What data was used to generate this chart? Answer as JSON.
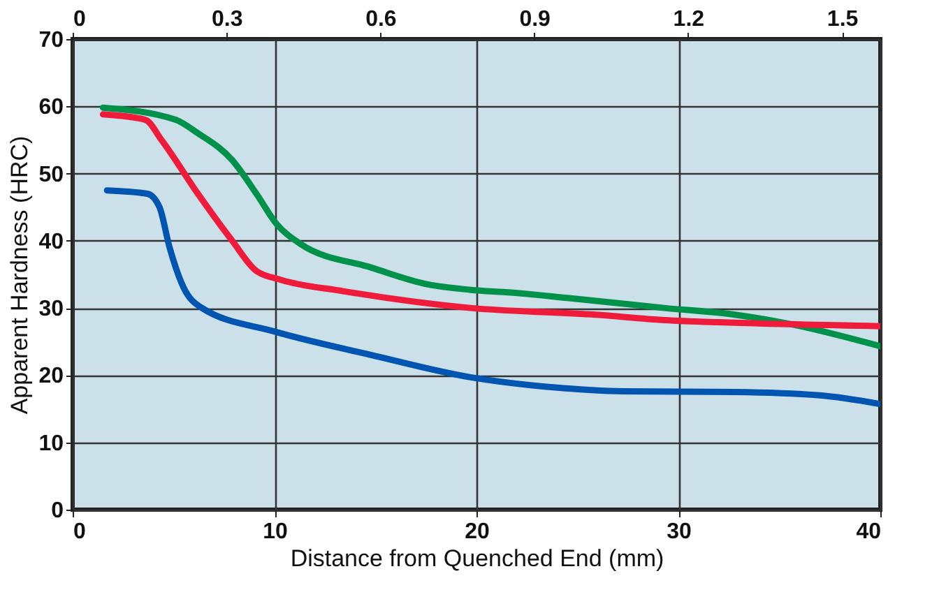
{
  "chart_data": {
    "type": "line",
    "xlabel": "Distance from Quenched End (mm)",
    "ylabel": "Apparent Hardness (HRC)",
    "xlim": [
      0,
      40
    ],
    "xticks": [
      0,
      10,
      20,
      30,
      40
    ],
    "ylim": [
      0,
      70
    ],
    "yticks": [
      0,
      10,
      20,
      30,
      40,
      50,
      60,
      70
    ],
    "x2lim": [
      0,
      1.5748
    ],
    "x2ticks": [
      0,
      0.3,
      0.6,
      0.9,
      1.2,
      1.5
    ],
    "grid": true,
    "legend": false,
    "line_style": "solid",
    "marker": "none",
    "series": [
      {
        "color": "#00924a",
        "x": [
          1.5,
          5.1,
          6.2,
          7.9,
          9.1,
          10.1,
          11.3,
          14.8,
          17.6,
          19.7,
          21.7,
          24.5,
          29.3,
          32.8,
          35.7,
          40
        ],
        "values": [
          59.8,
          58,
          56,
          52,
          47,
          42.5,
          39.5,
          36,
          33.5,
          32.7,
          32.3,
          31.5,
          30,
          29,
          27.5,
          24.3
        ]
      },
      {
        "color": "#ee1c3a",
        "x": [
          1.5,
          3.6,
          4.4,
          6.2,
          7.9,
          9.1,
          10.3,
          13.4,
          19.7,
          25.9,
          29.3,
          32.8,
          40
        ],
        "values": [
          58.8,
          58,
          55,
          47,
          40,
          35.5,
          34.2,
          32.5,
          30,
          29,
          28.2,
          27.8,
          27.3
        ]
      },
      {
        "color": "#0055b0",
        "x": [
          1.7,
          3.7,
          4.3,
          4.8,
          5.5,
          6.4,
          10,
          14.8,
          19.7,
          23.8,
          27.3,
          32.8,
          37,
          40
        ],
        "values": [
          47.5,
          47,
          45,
          39,
          33,
          30,
          26.5,
          23,
          19.7,
          18.2,
          17.6,
          17.5,
          17,
          15.7
        ]
      }
    ]
  }
}
